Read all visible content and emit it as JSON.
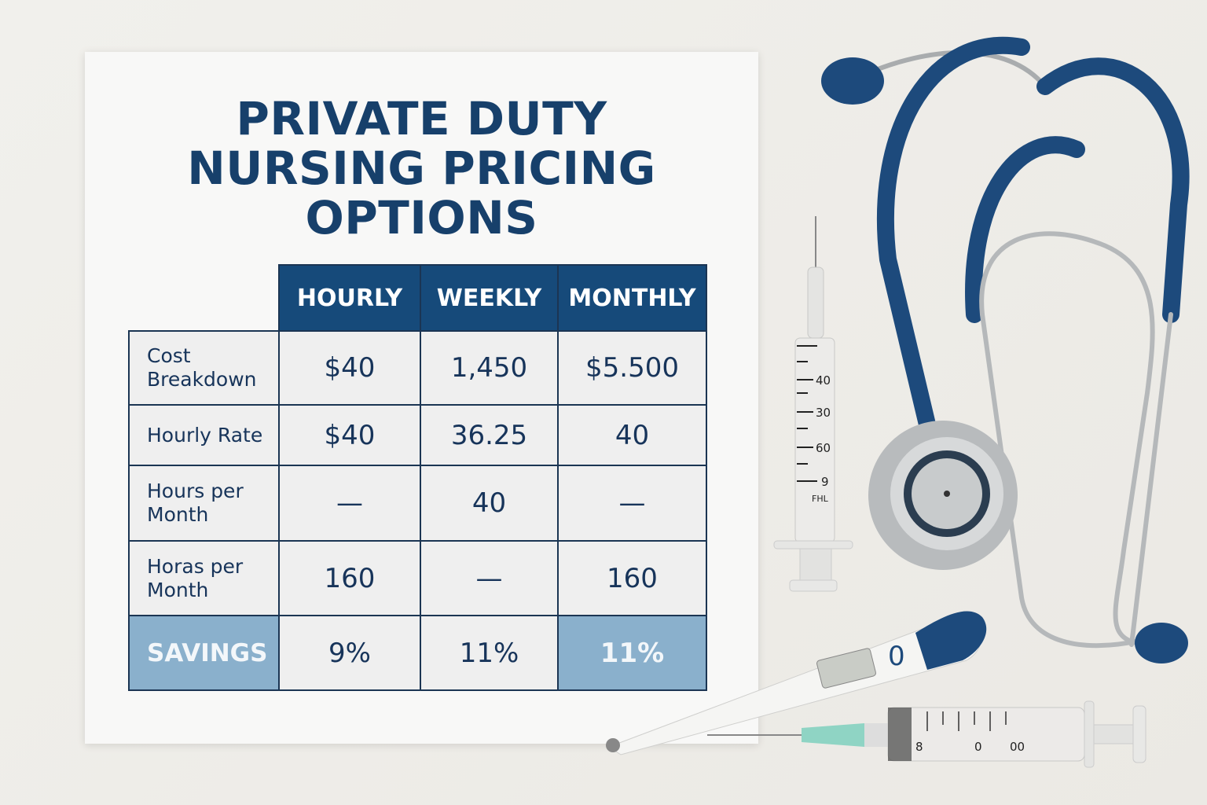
{
  "document": {
    "title_lines": [
      "PRIVATE DUTY",
      "NURSING PRICING",
      "OPTIONS"
    ],
    "table": {
      "columns": [
        "HOURLY",
        "WEEKLY",
        "MONTHLY"
      ],
      "rows": [
        {
          "label": "Cost Breakdown",
          "values": [
            "$40",
            "1,450",
            "$5.500"
          ]
        },
        {
          "label": "Hourly Rate",
          "values": [
            "$40",
            "36.25",
            "40"
          ]
        },
        {
          "label": "Hours per Month",
          "values": [
            "—",
            "40",
            "—"
          ]
        },
        {
          "label": "Horas per Month",
          "values": [
            "160",
            "—",
            "160"
          ]
        },
        {
          "label": "SAVINGS",
          "values": [
            "9%",
            "11%",
            "11%"
          ]
        }
      ]
    }
  },
  "props": {
    "syringe_scale": [
      "40",
      "30",
      "60",
      "9",
      "FHL"
    ],
    "thermometer_mark": "0",
    "lower_syringe_scale": [
      "8",
      "0",
      "00"
    ]
  },
  "colors": {
    "navy": "#164a7a",
    "savings_highlight": "#8ab0cc",
    "text": "#17345a"
  }
}
